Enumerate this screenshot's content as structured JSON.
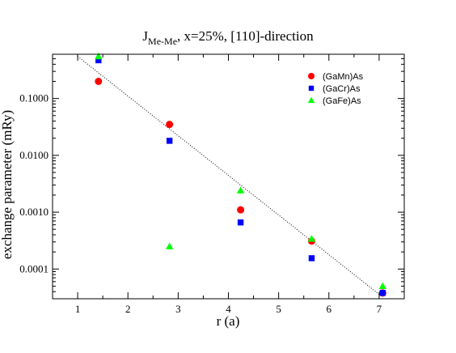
{
  "chart_data": {
    "type": "scatter",
    "title": {
      "main": "J",
      "sub": "Me-Me",
      "rest": ", x=25%, [110]-direction"
    },
    "xlabel": "r (a)",
    "ylabel": "exchange parameter (mRy)",
    "xlim": [
      0.5,
      7.5
    ],
    "ylim": [
      3e-05,
      0.6
    ],
    "yscale": "log",
    "xticks": [
      1,
      2,
      3,
      4,
      5,
      6,
      7
    ],
    "xtick_labels": [
      "1",
      "2",
      "3",
      "4",
      "5",
      "6",
      "7"
    ],
    "yticks": [
      0.0001,
      0.001,
      0.01,
      0.1
    ],
    "ytick_labels": [
      "0.0001",
      "0.0010",
      "0.0100",
      "0.1000"
    ],
    "grid": false,
    "legend_position": "top-right",
    "series": [
      {
        "name": "(GaMn)As",
        "marker": "circle",
        "color": "#ff0000",
        "x": [
          1.414,
          2.828,
          4.243,
          5.657,
          7.071
        ],
        "y": [
          0.2,
          0.035,
          0.0011,
          0.00031,
          3.8e-05
        ]
      },
      {
        "name": "(GaCr)As",
        "marker": "square",
        "color": "#0000ff",
        "x": [
          1.414,
          2.828,
          4.243,
          5.657,
          7.071
        ],
        "y": [
          0.47,
          0.018,
          0.00066,
          0.000155,
          3.8e-05
        ]
      },
      {
        "name": "(GaFe)As",
        "marker": "triangle",
        "color": "#00ff00",
        "x": [
          1.414,
          2.828,
          4.243,
          5.657,
          7.071
        ],
        "y": [
          0.55,
          0.00025,
          0.0024,
          0.00034,
          5e-05
        ]
      }
    ],
    "fit_line": {
      "style": "dotted",
      "x": [
        1.0,
        7.071
      ],
      "y": [
        0.55,
        3.2e-05
      ]
    }
  }
}
